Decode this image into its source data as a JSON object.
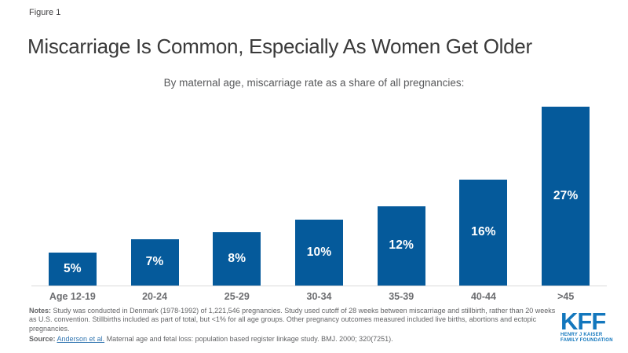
{
  "figure_label": "Figure 1",
  "title": "Miscarriage Is Common, Especially As Women Get Older",
  "subtitle": "By maternal age, miscarriage rate as a share of all pregnancies:",
  "chart_data": {
    "type": "bar",
    "categories": [
      "Age 12-19",
      "20-24",
      "25-29",
      "30-34",
      "35-39",
      "40-44",
      ">45"
    ],
    "values": [
      5,
      7,
      8,
      10,
      12,
      16,
      27
    ],
    "value_labels": [
      "5%",
      "7%",
      "8%",
      "10%",
      "12%",
      "16%",
      "27%"
    ],
    "title": "Miscarriage Is Common, Especially As Women Get Older",
    "subtitle": "By maternal age, miscarriage rate as a share of all pregnancies:",
    "xlabel": "",
    "ylabel": "",
    "ylim": [
      0,
      28
    ],
    "grid": false,
    "legend": false,
    "bar_color": "#055a9b",
    "value_label_position": "centered-inside-bar",
    "axis_line_color": "#d9d9d9"
  },
  "notes": {
    "label": "Notes:",
    "text": " Study was conducted in Denmark (1978-1992) of 1,221,546 pregnancies. Study used cutoff of 28 weeks between miscarriage and stillbirth, rather than 20 weeks as U.S. convention. Stillbirths included as part of total, but <1% for all age groups. Other pregnancy outcomes measured included live births, abortions and ectopic pregnancies."
  },
  "source": {
    "label": "Source:",
    "link_text": "Anderson et al.",
    "text": " Maternal age and fetal loss: population based register linkage study. BMJ. 2000; 320(7251)."
  },
  "logo": {
    "acronym": "KFF",
    "line1": "HENRY J KAISER",
    "line2": "FAMILY FOUNDATION",
    "color": "#1377bd"
  },
  "colors": {
    "bar": "#055a9b",
    "title_text": "#3a3a3a",
    "secondary_text": "#58595b",
    "axis_label_text": "#6d6e71",
    "footnote_text": "#636466",
    "link": "#3276b1",
    "logo_blue": "#1377bd",
    "background": "#ffffff"
  }
}
